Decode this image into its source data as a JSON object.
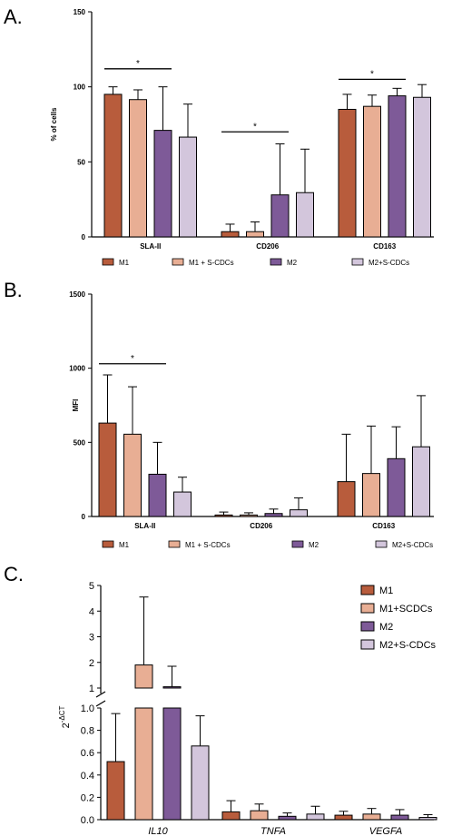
{
  "colors": {
    "M1": "#b85c3c",
    "M1_SCDC": "#e8ae94",
    "M2": "#7e5a98",
    "M2_SCDC": "#d3c6dc",
    "axis": "#000000",
    "sig": "#000000"
  },
  "chart_data": [
    {
      "panel": "A.",
      "type": "bar",
      "ylabel": "% of cells",
      "ylim": [
        0,
        150
      ],
      "yticks": [
        "0",
        "50",
        "100",
        "150"
      ],
      "categories": [
        "SLA-II",
        "CD206",
        "CD163"
      ],
      "series": [
        {
          "name": "M1",
          "values": [
            95,
            3.5,
            85
          ],
          "errors": [
            5,
            5,
            10
          ]
        },
        {
          "name": "M1 + S-CDCs",
          "values": [
            91.5,
            3.5,
            87
          ],
          "errors": [
            6.5,
            6.5,
            7.5
          ]
        },
        {
          "name": "M2",
          "values": [
            71,
            28,
            94
          ],
          "errors": [
            29,
            34,
            5
          ]
        },
        {
          "name": "M2+S-CDCs",
          "values": [
            66.5,
            29.5,
            93
          ],
          "errors": [
            22,
            29,
            8.5
          ]
        }
      ],
      "significance": [
        {
          "label": "*",
          "group": 0,
          "from_series": 0,
          "to_series": 2,
          "y": 112
        },
        {
          "label": "*",
          "group": 1,
          "from_series": 0,
          "to_series": 2,
          "y": 70
        },
        {
          "label": "*",
          "group": 2,
          "from_series": 0,
          "to_series": 2,
          "y": 105
        }
      ],
      "legend": [
        "M1",
        "M1 + S-CDCs",
        "M2",
        "M2+S-CDCs"
      ]
    },
    {
      "panel": "B.",
      "type": "bar",
      "ylabel": "MFI",
      "ylim": [
        0,
        1500
      ],
      "yticks": [
        "0",
        "500",
        "1000",
        "1500"
      ],
      "categories": [
        "SLA-II",
        "CD206",
        "CD163"
      ],
      "series": [
        {
          "name": "M1",
          "values": [
            630,
            10,
            235
          ],
          "errors": [
            325,
            20,
            320
          ]
        },
        {
          "name": "M1 + S-CDCs",
          "values": [
            555,
            10,
            290
          ],
          "errors": [
            320,
            15,
            320
          ]
        },
        {
          "name": "M2",
          "values": [
            285,
            20,
            390
          ],
          "errors": [
            215,
            30,
            215
          ]
        },
        {
          "name": "M2+S-CDCs",
          "values": [
            165,
            45,
            470
          ],
          "errors": [
            100,
            80,
            345
          ]
        }
      ],
      "significance": [
        {
          "label": "*",
          "group": 0,
          "from_series": 0,
          "to_series": 2,
          "y": 1030
        }
      ],
      "legend": [
        "M1",
        "M1 + S-CDCs",
        "M2",
        "M2+S-CDCs"
      ]
    },
    {
      "panel": "C.",
      "type": "bar",
      "ylabel": "2",
      "ylabel_sup": "-ΔCT",
      "yaxis_break": true,
      "yticks_lower": [
        "0.0",
        "0.2",
        "0.4",
        "0.6",
        "0.8",
        "1.0"
      ],
      "yticks_upper": [
        "1",
        "2",
        "3",
        "4",
        "5"
      ],
      "categories": [
        "IL10",
        "TNFA",
        "VEGFA"
      ],
      "series": [
        {
          "name": "M1",
          "values": [
            0.52,
            0.07,
            0.04
          ],
          "errors": [
            0.43,
            0.1,
            0.035
          ]
        },
        {
          "name": "M1+SCDCs",
          "values": [
            1.9,
            0.08,
            0.05
          ],
          "errors": [
            2.65,
            0.06,
            0.05
          ]
        },
        {
          "name": "M2",
          "values": [
            1.05,
            0.03,
            0.04
          ],
          "errors": [
            0.8,
            0.03,
            0.05
          ]
        },
        {
          "name": "M2+S-CDCs",
          "values": [
            0.66,
            0.05,
            0.02
          ],
          "errors": [
            0.27,
            0.07,
            0.025
          ]
        }
      ],
      "legend": [
        "M1",
        "M1+SCDCs",
        "M2",
        "M2+S-CDCs"
      ]
    }
  ]
}
